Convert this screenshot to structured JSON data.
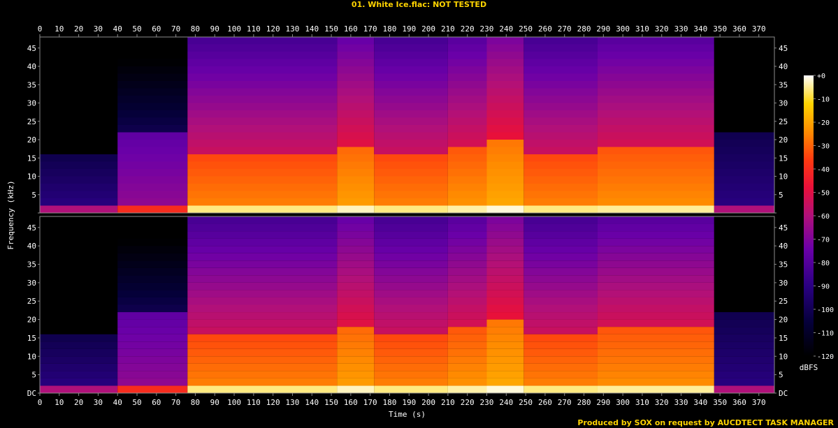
{
  "header": {
    "title": "01. White Ice.flac: NOT TESTED"
  },
  "footer": {
    "credit": "Produced by SOX on request by AUCDTECT TASK MANAGER"
  },
  "chart_data": {
    "type": "heatmap",
    "title": "01. White Ice.flac: NOT TESTED",
    "xlabel": "Time (s)",
    "ylabel": "Frequency (kHz)",
    "xlim": [
      0,
      378
    ],
    "ylim": [
      0,
      48
    ],
    "x_ticks": [
      0,
      10,
      20,
      30,
      40,
      50,
      60,
      70,
      80,
      90,
      100,
      110,
      120,
      130,
      140,
      150,
      160,
      170,
      180,
      190,
      200,
      210,
      220,
      230,
      240,
      250,
      260,
      270,
      280,
      290,
      300,
      310,
      320,
      330,
      340,
      350,
      360,
      370
    ],
    "y_ticks": [
      "DC",
      "5",
      "10",
      "15",
      "20",
      "25",
      "30",
      "35",
      "40",
      "45"
    ],
    "y_tick_values": [
      0,
      5,
      10,
      15,
      20,
      25,
      30,
      35,
      40,
      45
    ],
    "channels": 2,
    "colorbar": {
      "label": "dBFS",
      "ticks": [
        "+0",
        "-10",
        "-20",
        "-30",
        "-40",
        "-50",
        "-60",
        "-70",
        "-80",
        "-90",
        "-100",
        "-110",
        "-120"
      ],
      "tick_values": [
        0,
        -10,
        -20,
        -30,
        -40,
        -50,
        -60,
        -70,
        -80,
        -90,
        -100,
        -110,
        -120
      ]
    },
    "sections": [
      {
        "start": 0,
        "end": 40,
        "cutoff_khz": 15,
        "level_dbfs": -95
      },
      {
        "start": 40,
        "end": 76,
        "cutoff_khz": 22,
        "level_dbfs": -75
      },
      {
        "start": 76,
        "end": 153,
        "cutoff_khz": 16,
        "level_dbfs": -35
      },
      {
        "start": 153,
        "end": 172,
        "cutoff_khz": 18,
        "level_dbfs": -30
      },
      {
        "start": 172,
        "end": 210,
        "cutoff_khz": 16,
        "level_dbfs": -35
      },
      {
        "start": 210,
        "end": 230,
        "cutoff_khz": 17,
        "level_dbfs": -32
      },
      {
        "start": 230,
        "end": 249,
        "cutoff_khz": 20,
        "level_dbfs": -28
      },
      {
        "start": 249,
        "end": 287,
        "cutoff_khz": 16,
        "level_dbfs": -35
      },
      {
        "start": 287,
        "end": 347,
        "cutoff_khz": 18,
        "level_dbfs": -33
      },
      {
        "start": 347,
        "end": 378,
        "cutoff_khz": 22,
        "level_dbfs": -95
      }
    ],
    "colors": {
      "text": "#ffffff",
      "title": "#ffd400",
      "axis": "#8c8c8c",
      "background": "#000000"
    }
  }
}
